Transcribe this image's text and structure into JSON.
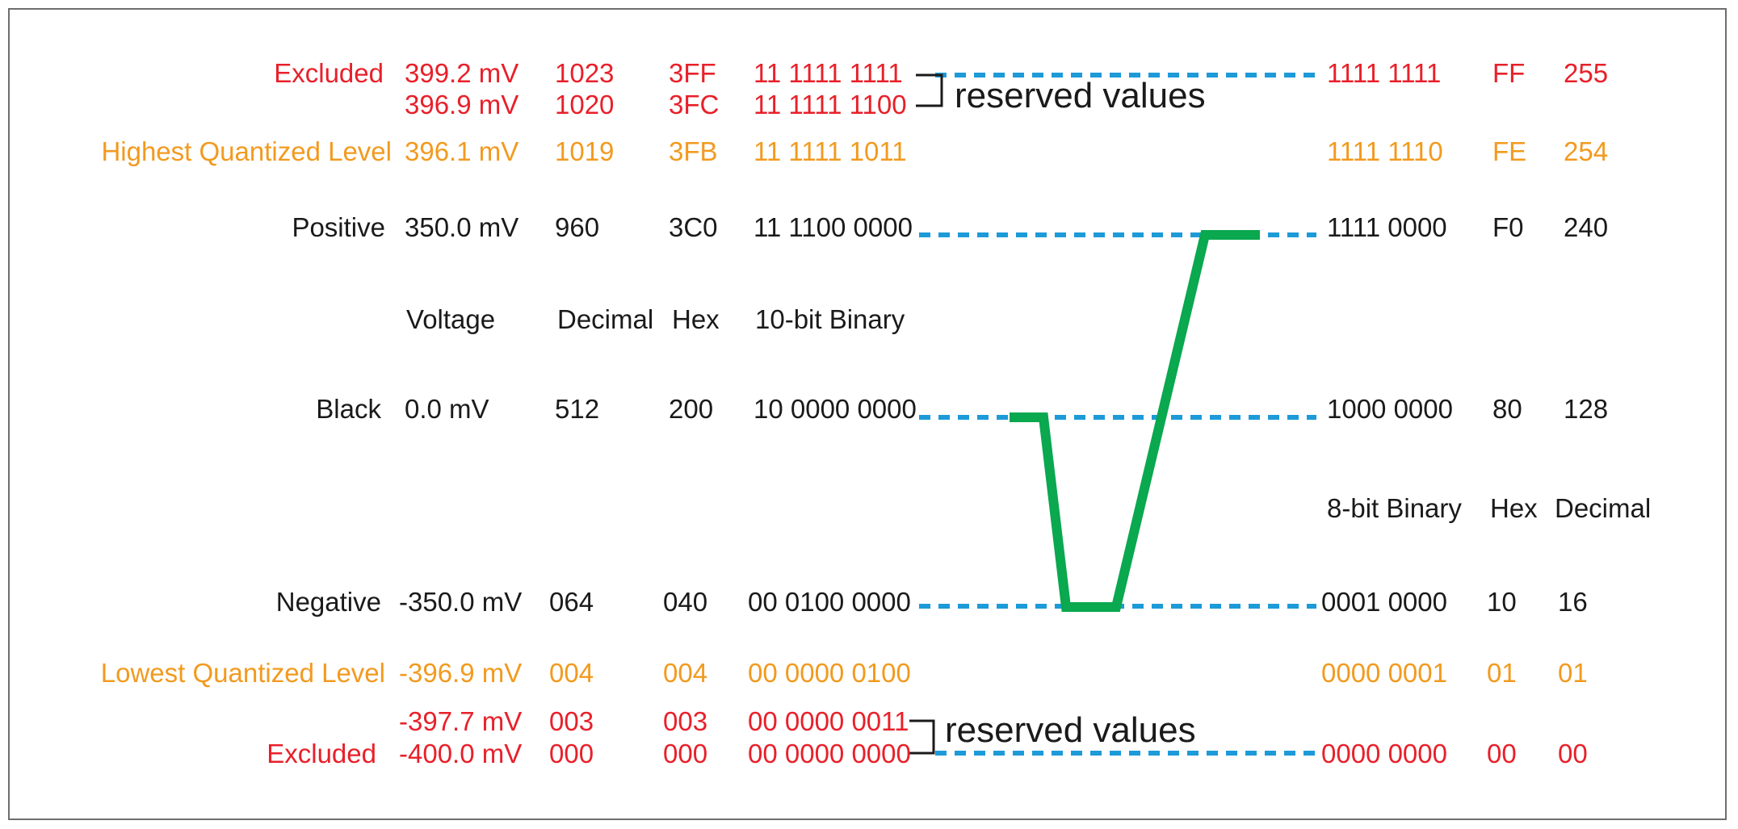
{
  "colors": {
    "excluded": "#e8202a",
    "quantized": "#f29a1f",
    "normal": "#1a1a1a",
    "dashed_line": "#1d9ad8",
    "waveform": "#0aa84f",
    "bracket": "#1a1a1a"
  },
  "headers_10bit": {
    "voltage": "Voltage",
    "decimal": "Decimal",
    "hex": "Hex",
    "binary": "10-bit Binary"
  },
  "headers_8bit": {
    "binary": "8-bit Binary",
    "hex": "Hex",
    "decimal": "Decimal"
  },
  "rows": [
    {
      "id": "r1023",
      "label": "Excluded",
      "voltage": "399.2 mV",
      "decimal": "1023",
      "hex": "3FF",
      "binary10": "11 1111 1111",
      "binary8": "1111 1111",
      "hex8": "FF",
      "dec8": "255",
      "style": "excluded"
    },
    {
      "id": "r1020",
      "label": "",
      "voltage": "396.9 mV",
      "decimal": "1020",
      "hex": "3FC",
      "binary10": "11 1111 1100",
      "binary8": "",
      "hex8": "",
      "dec8": "",
      "style": "excluded"
    },
    {
      "id": "r1019",
      "label": "Highest Quantized Level",
      "voltage": "396.1 mV",
      "decimal": "1019",
      "hex": "3FB",
      "binary10": "11 1111 1011",
      "binary8": "1111 1110",
      "hex8": "FE",
      "dec8": "254",
      "style": "quantized"
    },
    {
      "id": "r960",
      "label": "Positive",
      "voltage": "350.0 mV",
      "decimal": "960",
      "hex": "3C0",
      "binary10": "11 1100 0000",
      "binary8": "1111 0000",
      "hex8": "F0",
      "dec8": "240",
      "style": "normal"
    },
    {
      "id": "r512",
      "label": "Black",
      "voltage": "0.0 mV",
      "decimal": "512",
      "hex": "200",
      "binary10": "10 0000 0000",
      "binary8": "1000 0000",
      "hex8": "80",
      "dec8": "128",
      "style": "normal"
    },
    {
      "id": "r064",
      "label": "Negative",
      "voltage": "-350.0 mV",
      "decimal": "064",
      "hex": "040",
      "binary10": "00 0100 0000",
      "binary8": "0001 0000",
      "hex8": "10",
      "dec8": "16",
      "style": "normal"
    },
    {
      "id": "r004",
      "label": "Lowest Quantized Level",
      "voltage": "-396.9 mV",
      "decimal": "004",
      "hex": "004",
      "binary10": "00 0000 0100",
      "binary8": "0000 0001",
      "hex8": "01",
      "dec8": "01",
      "style": "quantized"
    },
    {
      "id": "r003",
      "label": "",
      "voltage": "-397.7 mV",
      "decimal": "003",
      "hex": "003",
      "binary10": "00 0000 0011",
      "binary8": "",
      "hex8": "",
      "dec8": "",
      "style": "excluded"
    },
    {
      "id": "r000",
      "label": "Excluded",
      "voltage": "-400.0 mV",
      "decimal": "000",
      "hex": "000",
      "binary10": "00 0000 0000",
      "binary8": "0000 0000",
      "hex8": "00",
      "dec8": "00",
      "style": "excluded"
    }
  ],
  "annotations": {
    "reserved_top": "reserved values",
    "reserved_bottom": "reserved values"
  }
}
